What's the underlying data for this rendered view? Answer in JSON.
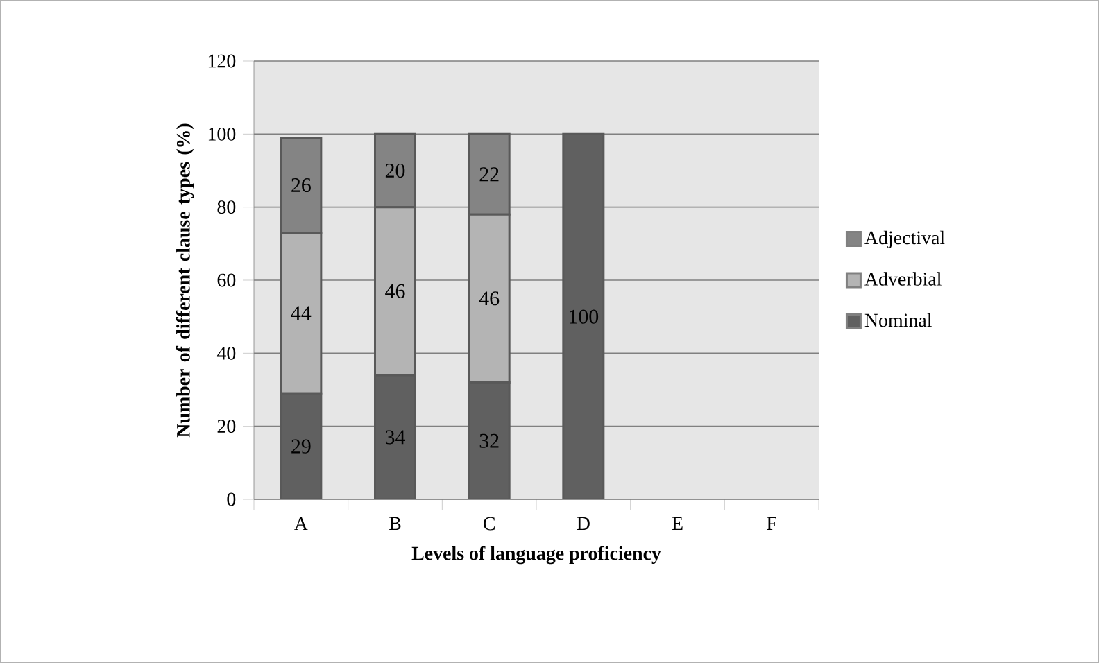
{
  "chart_data": {
    "type": "bar",
    "stacked": true,
    "xlabel": "Levels of language proficiency",
    "ylabel": "Number of different clause types (%)",
    "categories": [
      "A",
      "B",
      "C",
      "D",
      "E",
      "F"
    ],
    "series": [
      {
        "name": "Nominal",
        "color": "#606060",
        "values": [
          29,
          34,
          32,
          100,
          null,
          null
        ]
      },
      {
        "name": "Adverbial",
        "color": "#b4b4b4",
        "values": [
          44,
          46,
          46,
          null,
          null,
          null
        ]
      },
      {
        "name": "Adjectival",
        "color": "#848484",
        "values": [
          26,
          20,
          22,
          null,
          null,
          null
        ]
      }
    ],
    "ylim": [
      0,
      120
    ],
    "yticks": [
      0,
      20,
      40,
      60,
      80,
      100,
      120
    ],
    "grid": "y",
    "legend": "right",
    "data_labels": true
  }
}
